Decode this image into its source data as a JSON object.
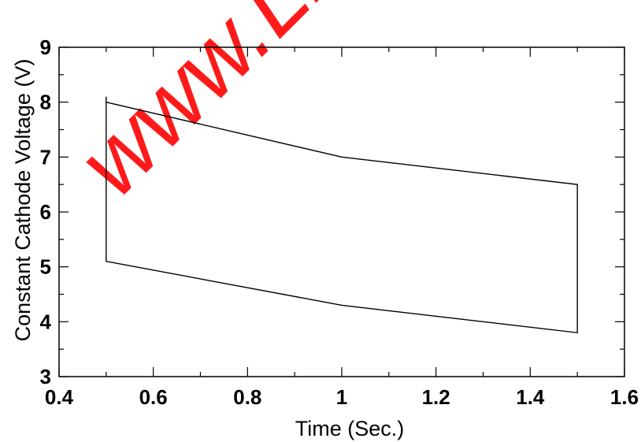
{
  "chart_data": {
    "type": "line",
    "xlabel": "Time (Sec.)",
    "ylabel": "Constant Cathode Voltage (V)",
    "xlim": [
      0.4,
      1.6
    ],
    "ylim": [
      3,
      9
    ],
    "x_ticks": [
      "0.4",
      "0.6",
      "0.8",
      "1",
      "1.2",
      "1.4",
      "1.6"
    ],
    "y_ticks": [
      "3",
      "4",
      "5",
      "6",
      "7",
      "8",
      "9"
    ],
    "grid": false,
    "series": [
      {
        "x": [
          0.5,
          0.5,
          1.0,
          1.5,
          1.5,
          1.0,
          0.5,
          0.5
        ],
        "y": [
          8.1,
          8.0,
          7.0,
          6.5,
          3.8,
          4.3,
          5.1,
          8.1
        ]
      }
    ],
    "line_color": "#000000"
  },
  "watermark": {
    "text": "www.Lis",
    "color": "#ff1a1a"
  }
}
